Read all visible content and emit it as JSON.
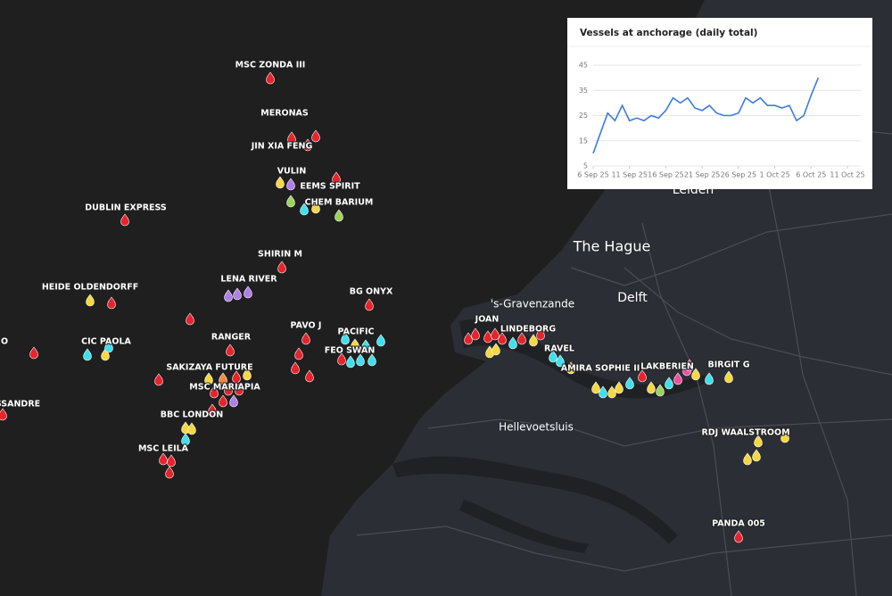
{
  "map": {
    "places": [
      "The Hague",
      "Delft",
      "'s-Gravenzande",
      "Hellevoetsluis",
      "Leiden"
    ],
    "vessels": [
      "MSC ZONDA III",
      "MERONAS",
      "JIN XIA FENG",
      "VULIN",
      "EEMS SPIRIT",
      "CHEM BARIUM",
      "DUBLIN EXPRESS",
      "SHIRIN M",
      "LENA RIVER",
      "BG ONYX",
      "HEIDE OLDENDORFF",
      "PAVO J",
      "PACIFIC",
      "RANGER",
      "CIC PAOLA",
      "FEO SWAN",
      "O",
      "SAKIZAYA FUTURE",
      "MSC MARIAPIA",
      "BBC LONDON",
      "MSC LEILA",
      "SSANDRE",
      "JOAN",
      "LINDEBORG",
      "RAVEL",
      "AMIRA SOPHIE II",
      "LAKBERIEN",
      "BIRGIT G",
      "RDJ WAALSTROOM",
      "PANDA 005"
    ]
  },
  "chart_data": {
    "type": "line",
    "title": "Vessels at anchorage (daily total)",
    "color": "#3d7be0",
    "grid": true,
    "x": [
      "2025-09-06",
      "2025-09-07",
      "2025-09-08",
      "2025-09-09",
      "2025-09-10",
      "2025-09-11",
      "2025-09-12",
      "2025-09-13",
      "2025-09-14",
      "2025-09-15",
      "2025-09-16",
      "2025-09-17",
      "2025-09-18",
      "2025-09-19",
      "2025-09-20",
      "2025-09-21",
      "2025-09-22",
      "2025-09-23",
      "2025-09-24",
      "2025-09-25",
      "2025-09-26",
      "2025-09-27",
      "2025-09-28",
      "2025-09-29",
      "2025-09-30",
      "2025-10-01",
      "2025-10-02",
      "2025-10-03",
      "2025-10-04",
      "2025-10-05",
      "2025-10-06",
      "2025-10-07"
    ],
    "values": [
      10,
      18,
      26,
      23,
      29,
      23,
      24,
      23,
      25,
      24,
      27,
      32,
      30,
      32,
      28,
      27,
      29,
      26,
      25,
      25,
      26,
      32,
      30,
      32,
      29,
      29,
      28,
      29,
      23,
      25,
      33,
      40
    ],
    "xlim": [
      "2025-09-06",
      "2025-10-11"
    ],
    "xticks": [
      {
        "value": "2025-09-06",
        "label": "6 Sep 25"
      },
      {
        "value": "2025-09-11",
        "label": "11 Sep 25"
      },
      {
        "value": "2025-09-16",
        "label": "16 Sep 25"
      },
      {
        "value": "2025-09-21",
        "label": "21 Sep 25"
      },
      {
        "value": "2025-09-26",
        "label": "26 Sep 25"
      },
      {
        "value": "2025-10-01",
        "label": "1 Oct 25"
      },
      {
        "value": "2025-10-06",
        "label": "6 Oct 25"
      },
      {
        "value": "2025-10-11",
        "label": "11 Oct 25"
      }
    ],
    "ylim": [
      5,
      45
    ],
    "yticks": [
      5,
      15,
      25,
      35,
      45
    ]
  }
}
